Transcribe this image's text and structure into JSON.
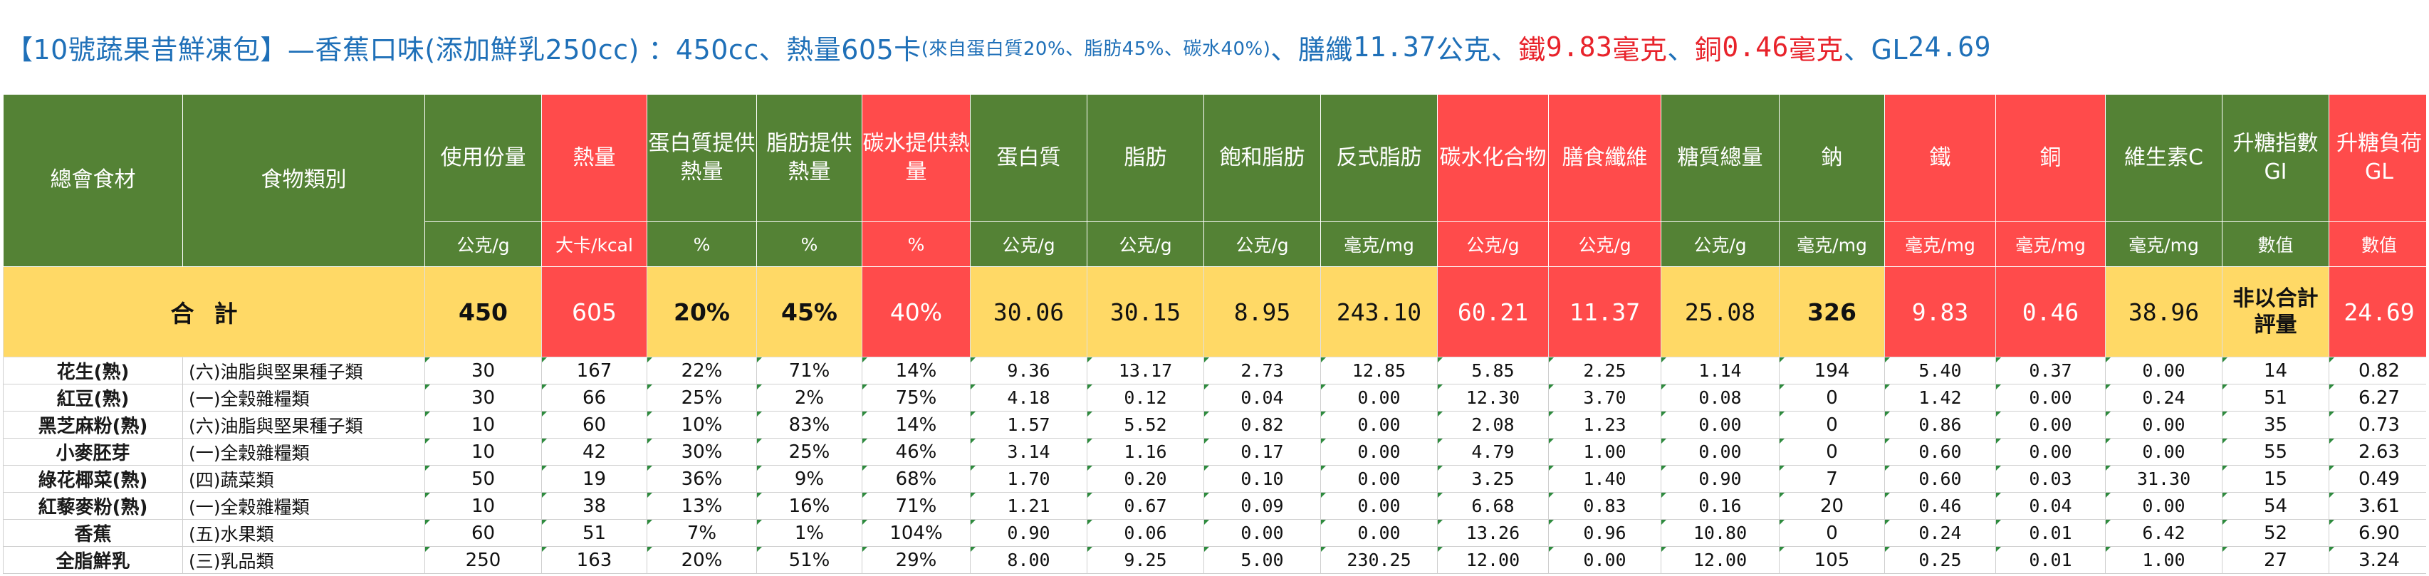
{
  "title": {
    "seg1": "【10號蔬果昔鮮凍包】—香蕉口味(添加鮮乳250cc) ：450cc、熱量605卡",
    "seg2": "(來自蛋白質20%、脂肪45%、碳水40%)",
    "seg3": "、膳纖",
    "seg4": "11.37",
    "seg5": "公克、",
    "seg6": "鐵",
    "seg7": "9.83",
    "seg8": "毫克",
    "seg9": "、",
    "seg10": "銅",
    "seg11": "0.46",
    "seg12": "毫克",
    "seg13": "、GL",
    "seg14": "24.69"
  },
  "colors": {
    "title_blue": "#1f70b8",
    "header_green": "#548235",
    "header_red": "#ff4b4b",
    "total_yellow": "#ffd966",
    "note_red": "#e8232b"
  },
  "table": {
    "headers": [
      "總會食材",
      "食物類別",
      "使用份量",
      "熱量",
      "蛋白質提供熱量",
      "脂肪提供熱量",
      "碳水提供熱量",
      "蛋白質",
      "脂肪",
      "飽和脂肪",
      "反式脂肪",
      "碳水化合物",
      "膳食纖維",
      "糖質總量",
      "鈉",
      "鐵",
      "銅",
      "維生素C",
      "升糖指數GI",
      "升糖負荷GL"
    ],
    "units": [
      "",
      "",
      "公克/g",
      "大卡/kcal",
      "%",
      "%",
      "%",
      "公克/g",
      "公克/g",
      "公克/g",
      "毫克/mg",
      "公克/g",
      "公克/g",
      "公克/g",
      "毫克/mg",
      "毫克/mg",
      "毫克/mg",
      "毫克/mg",
      "數值",
      "數值"
    ],
    "total": [
      "合計",
      "450",
      "605",
      "20%",
      "45%",
      "40%",
      "30.06",
      "30.15",
      "8.95",
      "243.10",
      "60.21",
      "11.37",
      "25.08",
      "326",
      "9.83",
      "0.46",
      "38.96",
      "非以合計評量",
      "24.69"
    ],
    "rows": [
      [
        "花生(熟)",
        "(六)油脂與堅果種子類",
        "30",
        "167",
        "22%",
        "71%",
        "14%",
        "9.36",
        "13.17",
        "2.73",
        "12.85",
        "5.85",
        "2.25",
        "1.14",
        "194",
        "5.40",
        "0.37",
        "0.00",
        "14",
        "0.82"
      ],
      [
        "紅豆(熟)",
        "(一)全穀雜糧類",
        "30",
        "66",
        "25%",
        "2%",
        "75%",
        "4.18",
        "0.12",
        "0.04",
        "0.00",
        "12.30",
        "3.70",
        "0.08",
        "0",
        "1.42",
        "0.00",
        "0.24",
        "51",
        "6.27"
      ],
      [
        "黑芝麻粉(熟)",
        "(六)油脂與堅果種子類",
        "10",
        "60",
        "10%",
        "83%",
        "14%",
        "1.57",
        "5.52",
        "0.82",
        "0.00",
        "2.08",
        "1.23",
        "0.00",
        "0",
        "0.86",
        "0.00",
        "0.00",
        "35",
        "0.73"
      ],
      [
        "小麥胚芽",
        "(一)全穀雜糧類",
        "10",
        "42",
        "30%",
        "25%",
        "46%",
        "3.14",
        "1.16",
        "0.17",
        "0.00",
        "4.79",
        "1.00",
        "0.00",
        "0",
        "0.60",
        "0.00",
        "0.00",
        "55",
        "2.63"
      ],
      [
        "綠花椰菜(熟)",
        "(四)蔬菜類",
        "50",
        "19",
        "36%",
        "9%",
        "68%",
        "1.70",
        "0.20",
        "0.10",
        "0.00",
        "3.25",
        "1.40",
        "0.90",
        "7",
        "0.60",
        "0.03",
        "31.30",
        "15",
        "0.49"
      ],
      [
        "紅藜麥粉(熟)",
        "(一)全穀雜糧類",
        "10",
        "38",
        "13%",
        "16%",
        "71%",
        "1.21",
        "0.67",
        "0.09",
        "0.00",
        "6.68",
        "0.83",
        "0.16",
        "20",
        "0.46",
        "0.04",
        "0.00",
        "54",
        "3.61"
      ],
      [
        "香蕉",
        "(五)水果類",
        "60",
        "51",
        "7%",
        "1%",
        "104%",
        "0.90",
        "0.06",
        "0.00",
        "0.00",
        "13.26",
        "0.96",
        "10.80",
        "0",
        "0.24",
        "0.01",
        "6.42",
        "52",
        "6.90"
      ],
      [
        "全脂鮮乳",
        "(三)乳品類",
        "250",
        "163",
        "20%",
        "51%",
        "29%",
        "8.00",
        "9.25",
        "5.00",
        "230.25",
        "12.00",
        "0.00",
        "12.00",
        "105",
        "0.25",
        "0.01",
        "1.00",
        "27",
        "3.24"
      ]
    ]
  }
}
